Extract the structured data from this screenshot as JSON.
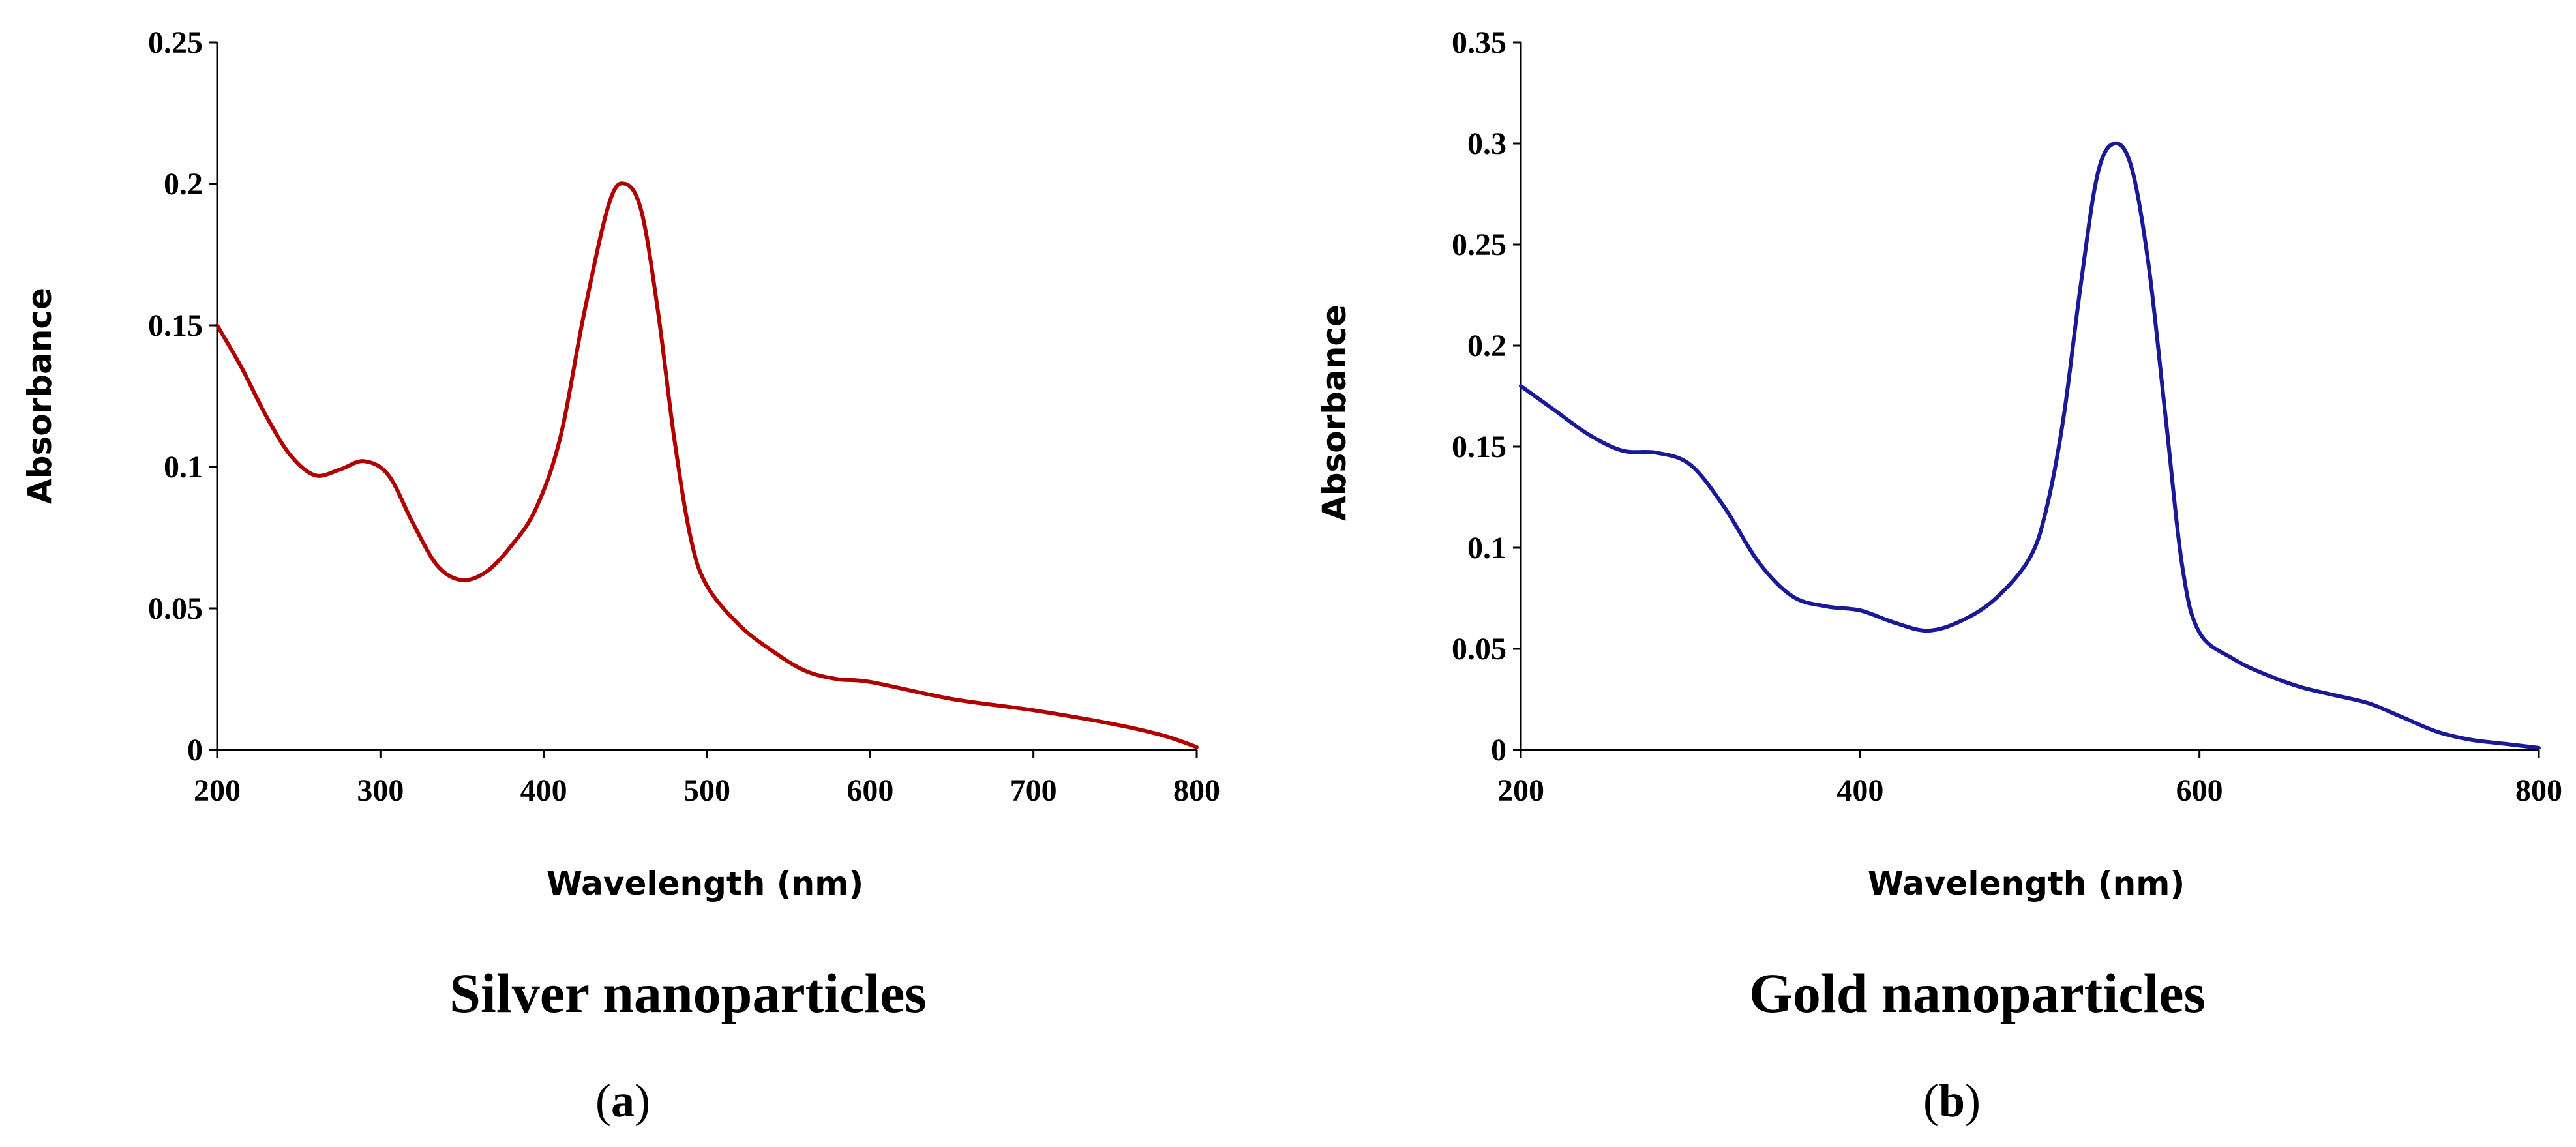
{
  "chart_data": [
    {
      "id": "a",
      "type": "line",
      "title": "Silver nanoparticles",
      "panel_label": "a",
      "xlabel": "Wavelength (nm)",
      "ylabel": "Absorbance",
      "xlim": [
        200,
        800
      ],
      "ylim": [
        0,
        0.25
      ],
      "xticks": [
        200,
        300,
        400,
        500,
        600,
        700,
        800
      ],
      "yticks": [
        "0",
        "0.05",
        "0.1",
        "0.15",
        "0.2",
        "0.25"
      ],
      "grid": false,
      "series": [
        {
          "name": "Silver nanoparticles",
          "color": "#b00000",
          "x": [
            200,
            215,
            230,
            245,
            260,
            275,
            290,
            305,
            320,
            335,
            350,
            365,
            380,
            395,
            410,
            425,
            440,
            450,
            460,
            470,
            480,
            490,
            500,
            520,
            540,
            560,
            580,
            600,
            650,
            700,
            750,
            780,
            800
          ],
          "y": [
            0.15,
            0.135,
            0.118,
            0.104,
            0.097,
            0.099,
            0.102,
            0.097,
            0.08,
            0.065,
            0.06,
            0.063,
            0.072,
            0.085,
            0.11,
            0.155,
            0.193,
            0.2,
            0.19,
            0.155,
            0.11,
            0.075,
            0.058,
            0.044,
            0.035,
            0.028,
            0.025,
            0.024,
            0.018,
            0.014,
            0.009,
            0.005,
            0.001
          ]
        }
      ]
    },
    {
      "id": "b",
      "type": "line",
      "title": "Gold nanoparticles",
      "panel_label": "b",
      "xlabel": "Wavelength (nm)",
      "ylabel": "Absorbance",
      "xlim": [
        200,
        800
      ],
      "ylim": [
        0,
        0.35
      ],
      "xticks": [
        200,
        400,
        600,
        800
      ],
      "yticks": [
        "0",
        "0.05",
        "0.1",
        "0.15",
        "0.2",
        "0.25",
        "0.3",
        "0.35"
      ],
      "grid": false,
      "series": [
        {
          "name": "Gold nanoparticles",
          "color": "#1a1a96",
          "x": [
            200,
            220,
            240,
            260,
            280,
            300,
            320,
            340,
            360,
            380,
            400,
            420,
            440,
            460,
            480,
            500,
            510,
            520,
            530,
            540,
            550,
            560,
            570,
            580,
            590,
            600,
            620,
            640,
            660,
            680,
            700,
            720,
            740,
            760,
            780,
            800
          ],
          "y": [
            0.18,
            0.168,
            0.156,
            0.148,
            0.147,
            0.141,
            0.12,
            0.093,
            0.076,
            0.071,
            0.069,
            0.063,
            0.059,
            0.064,
            0.075,
            0.095,
            0.12,
            0.165,
            0.23,
            0.285,
            0.3,
            0.288,
            0.24,
            0.165,
            0.09,
            0.058,
            0.045,
            0.037,
            0.031,
            0.027,
            0.023,
            0.016,
            0.009,
            0.005,
            0.003,
            0.001
          ]
        }
      ]
    }
  ]
}
